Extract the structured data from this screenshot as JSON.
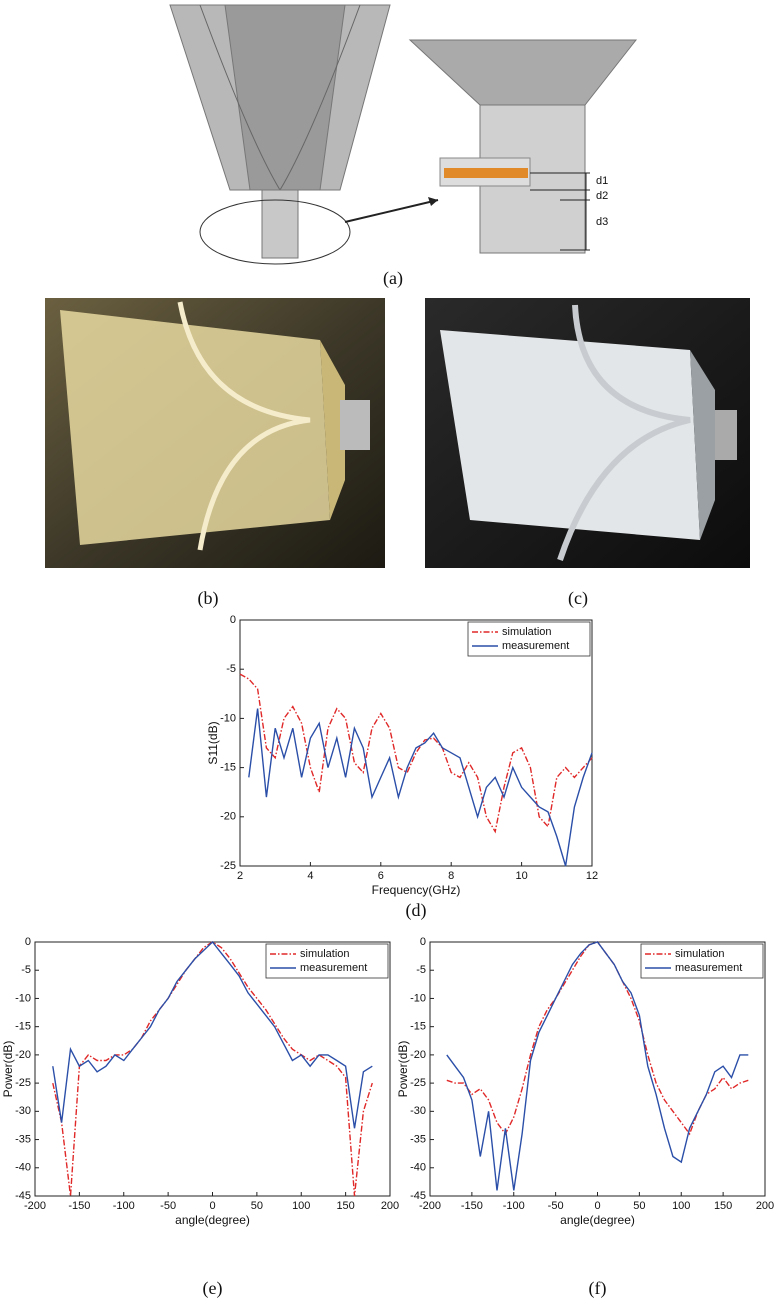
{
  "diagram": {
    "caption": "(a)",
    "labels": [
      "d1",
      "d2",
      "d3"
    ]
  },
  "photos": [
    {
      "caption": "(b)"
    },
    {
      "caption": "(c)"
    }
  ],
  "chart_data": [
    {
      "type": "line",
      "caption": "(d)",
      "xlabel": "Frequency(GHz)",
      "ylabel": "S11(dB)",
      "legend": "upper right",
      "x": [
        2,
        2.25,
        2.5,
        2.75,
        3,
        3.25,
        3.5,
        3.75,
        4,
        4.25,
        4.5,
        4.75,
        5,
        5.25,
        5.5,
        5.75,
        6,
        6.25,
        6.5,
        6.75,
        7,
        7.25,
        7.5,
        7.75,
        8,
        8.25,
        8.5,
        8.75,
        9,
        9.25,
        9.5,
        9.75,
        10,
        10.25,
        10.5,
        10.75,
        11,
        11.25,
        11.5,
        11.75,
        12
      ],
      "xlim": [
        2,
        12
      ],
      "xticks": [
        2,
        4,
        6,
        8,
        10,
        12
      ],
      "ylim": [
        -25,
        0
      ],
      "yticks": [
        0,
        -5,
        -10,
        -15,
        -20,
        -25
      ],
      "series": [
        {
          "name": "simulation",
          "color": "#e02828",
          "linestyle": "dashdot",
          "values": [
            -5.5,
            -6,
            -7,
            -13,
            -14,
            -10,
            -8.8,
            -10.5,
            -15,
            -17.5,
            -11,
            -9,
            -10,
            -14.5,
            -15.5,
            -11,
            -9.5,
            -11,
            -15,
            -15.5,
            -13.5,
            -12.2,
            -12,
            -13,
            -15.5,
            -16,
            -14.5,
            -16,
            -20,
            -21.5,
            -17,
            -13.5,
            -13,
            -15,
            -20,
            -21,
            -16,
            -15,
            -16,
            -15,
            -14
          ]
        },
        {
          "name": "measurement",
          "color": "#2b4fa8",
          "linestyle": "solid",
          "values": [
            null,
            -16,
            -9,
            -18,
            -11,
            -14,
            -11,
            -16,
            -12,
            -10.5,
            -15,
            -12,
            -16,
            -11,
            -13,
            -18,
            -16,
            -14,
            -18,
            -15,
            -13,
            -12.5,
            -11.5,
            -13,
            -13.5,
            -14,
            -17,
            -20,
            -17,
            -16,
            -18,
            -15,
            -17,
            -18,
            -19,
            -19.5,
            -22,
            -25,
            -19,
            -16,
            -13.5
          ]
        }
      ]
    },
    {
      "type": "line",
      "caption": "(e)",
      "xlabel": "angle(degree)",
      "ylabel": "Power(dB)",
      "legend": "upper right",
      "x": [
        -180,
        -170,
        -160,
        -150,
        -140,
        -130,
        -120,
        -110,
        -100,
        -90,
        -80,
        -70,
        -60,
        -50,
        -40,
        -30,
        -20,
        -10,
        0,
        10,
        20,
        30,
        40,
        50,
        60,
        70,
        80,
        90,
        100,
        110,
        120,
        130,
        140,
        150,
        160,
        170,
        180
      ],
      "xlim": [
        -200,
        200
      ],
      "xticks": [
        -200,
        -150,
        -100,
        -50,
        0,
        50,
        100,
        150,
        200
      ],
      "ylim": [
        -45,
        0
      ],
      "yticks": [
        0,
        -5,
        -10,
        -15,
        -20,
        -25,
        -30,
        -35,
        -40,
        -45
      ],
      "series": [
        {
          "name": "simulation",
          "color": "#e02828",
          "linestyle": "dashdot",
          "values": [
            -25,
            -32,
            -45,
            -22,
            -20,
            -21,
            -21,
            -20,
            -20,
            -19,
            -17,
            -14,
            -12,
            -10,
            -7.5,
            -5,
            -3,
            -1,
            0,
            -1,
            -3,
            -5.5,
            -8,
            -10,
            -12,
            -14.5,
            -17,
            -19,
            -20,
            -21,
            -20,
            -21,
            -22,
            -24,
            -45,
            -30,
            -25
          ]
        },
        {
          "name": "measurement",
          "color": "#2b4fa8",
          "linestyle": "solid",
          "values": [
            -22,
            -32,
            -19,
            -22,
            -21,
            -23,
            -22,
            -20,
            -21,
            -19,
            -17,
            -15,
            -12,
            -10,
            -7,
            -5,
            -3,
            -1.5,
            0,
            -2,
            -4,
            -6,
            -9,
            -11,
            -13,
            -15,
            -18,
            -21,
            -20,
            -22,
            -20,
            -20,
            -21,
            -22,
            -33,
            -23,
            -22
          ]
        }
      ]
    },
    {
      "type": "line",
      "caption": "(f)",
      "xlabel": "angle(degree)",
      "ylabel": "Power(dB)",
      "legend": "upper right",
      "x": [
        -180,
        -170,
        -160,
        -150,
        -140,
        -130,
        -120,
        -110,
        -100,
        -90,
        -80,
        -70,
        -60,
        -50,
        -40,
        -30,
        -20,
        -10,
        0,
        10,
        20,
        30,
        40,
        50,
        60,
        70,
        80,
        90,
        100,
        110,
        120,
        130,
        140,
        150,
        160,
        170,
        180
      ],
      "xlim": [
        -200,
        200
      ],
      "xticks": [
        -200,
        -150,
        -100,
        -50,
        0,
        50,
        100,
        150,
        200
      ],
      "ylim": [
        -45,
        0
      ],
      "yticks": [
        0,
        -5,
        -10,
        -15,
        -20,
        -25,
        -30,
        -35,
        -40,
        -45
      ],
      "series": [
        {
          "name": "simulation",
          "color": "#e02828",
          "linestyle": "dashdot",
          "values": [
            -24.5,
            -25,
            -25,
            -27,
            -26,
            -28,
            -32,
            -34,
            -31,
            -26,
            -20,
            -15,
            -12,
            -10,
            -7.5,
            -5,
            -2.5,
            -0.5,
            0,
            -2,
            -4,
            -7,
            -10,
            -14,
            -20,
            -25,
            -28,
            -30,
            -32,
            -34,
            -30,
            -27,
            -26,
            -24,
            -26,
            -25,
            -24.5
          ]
        },
        {
          "name": "measurement",
          "color": "#2b4fa8",
          "linestyle": "solid",
          "values": [
            -20,
            -22,
            -24,
            -28,
            -38,
            -30,
            -44,
            -33,
            -44,
            -34,
            -21,
            -16,
            -13,
            -10,
            -7,
            -4,
            -2,
            -0.5,
            0,
            -2,
            -4,
            -7,
            -9,
            -13,
            -22,
            -27,
            -33,
            -38,
            -39,
            -33,
            -30,
            -27,
            -23,
            -22,
            -24,
            -20,
            -20
          ]
        }
      ]
    }
  ]
}
